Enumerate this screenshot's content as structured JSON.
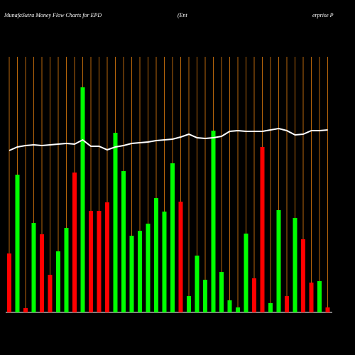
{
  "chart_data": {
    "type": "bar",
    "title": "MunafaSutra  Money Flow  Charts for EPD",
    "subtitle": [
      "(Ent",
      "erprise   P"
    ],
    "categories": [
      null,
      null,
      null,
      null,
      null,
      null,
      null,
      null,
      null,
      null,
      null,
      null,
      null,
      null,
      null,
      null,
      null,
      null,
      null,
      null,
      null,
      null,
      null,
      null,
      null,
      null,
      null,
      null,
      null,
      null,
      null,
      null,
      null,
      null,
      null,
      null,
      null,
      null,
      null,
      null
    ],
    "ylim": [
      0,
      360
    ],
    "grid": true,
    "grid_color": "#b8660b",
    "series": [
      {
        "type": "bar",
        "values": [
          83,
          194,
          6,
          126,
          110,
          53,
          86,
          119,
          197,
          317,
          143,
          143,
          155,
          253,
          199,
          108,
          115,
          125,
          161,
          142,
          210,
          156,
          23,
          80,
          46,
          256,
          57,
          17,
          7,
          111,
          48,
          233,
          13,
          144,
          23,
          133,
          103,
          42,
          44,
          7
        ],
        "colors": [
          "#ff0000",
          "#00ff00",
          "#ff0000",
          "#00ff00",
          "#ff0000",
          "#ff0000",
          "#00ff00",
          "#00ff00",
          "#ff0000",
          "#00ff00",
          "#ff0000",
          "#ff0000",
          "#ff0000",
          "#00ff00",
          "#00ff00",
          "#00ff00",
          "#00ff00",
          "#00ff00",
          "#00ff00",
          "#00ff00",
          "#00ff00",
          "#ff0000",
          "#00ff00",
          "#00ff00",
          "#00ff00",
          "#00ff00",
          "#00ff00",
          "#00ff00",
          "#00ff00",
          "#00ff00",
          "#ff0000",
          "#ff0000",
          "#00ff00",
          "#00ff00",
          "#ff0000",
          "#00ff00",
          "#ff0000",
          "#ff0000",
          "#00ff00",
          "#ff0000"
        ]
      },
      {
        "type": "line",
        "color": "#ffffff",
        "values": [
          228,
          233,
          235,
          236,
          235,
          236,
          237,
          238,
          237,
          243,
          234,
          234,
          229,
          233,
          235,
          238,
          239,
          240,
          242,
          243,
          244,
          247,
          251,
          246,
          245,
          246,
          248,
          255,
          256,
          255,
          255,
          255,
          257,
          259,
          256,
          250,
          251,
          256,
          256,
          257
        ]
      }
    ]
  }
}
